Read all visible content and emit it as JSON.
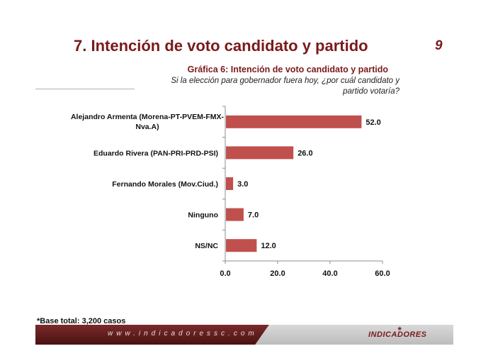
{
  "slide": {
    "title": "7. Intención de voto candidato y partido",
    "page_number": "9"
  },
  "chart_data": {
    "type": "bar",
    "orientation": "horizontal",
    "title": "Gráfica 6: Intención de voto candidato  y partido",
    "subtitle": "Si  la elección para gobernador fuera hoy, ¿por cuál candidato y partido votaría?",
    "categories": [
      "Alejandro Armenta (Morena-PT-PVEM-FMX-Nva.A)",
      "Eduardo Rivera (PAN-PRI-PRD-PSI)",
      "Fernando Morales (Mov.Ciud.)",
      "Ninguno",
      "NS/NC"
    ],
    "values": [
      52.0,
      26.0,
      3.0,
      7.0,
      12.0
    ],
    "value_labels": [
      "52.0",
      "26.0",
      "3.0",
      "7.0",
      "12.0"
    ],
    "xlim": [
      0,
      60
    ],
    "x_ticks": [
      0,
      20,
      40,
      60
    ],
    "x_tick_labels": [
      "0.0",
      "20.0",
      "40.0",
      "60.0"
    ],
    "grid": false,
    "legend": "none",
    "bar_color": "#c0504d"
  },
  "footnote": "*Base total: 3,200 casos",
  "footer": {
    "url": "www.indicadoressc.com",
    "logo_text": "INDICADORES"
  }
}
